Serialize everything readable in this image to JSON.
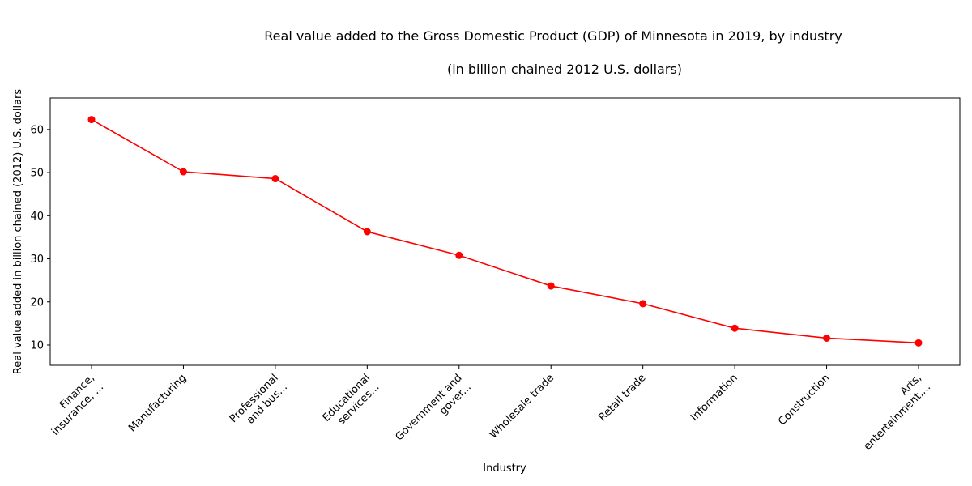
{
  "chart_data": {
    "type": "line",
    "title": "Real value added to the Gross Domestic Product (GDP) of Minnesota in 2019, by industry",
    "subtitle": "(in billion chained 2012 U.S. dollars)",
    "xlabel": "Industry",
    "ylabel": "Real value added in billion chained (2012) U.S. dollars",
    "categories": [
      [
        "Finance,",
        "insurance, ..."
      ],
      [
        "Manufacturing"
      ],
      [
        "Professional",
        "and bus..."
      ],
      [
        "Educational",
        "services..."
      ],
      [
        "Government and",
        "gover..."
      ],
      [
        "Wholesale trade"
      ],
      [
        "Retail trade"
      ],
      [
        "Information"
      ],
      [
        "Construction"
      ],
      [
        "Arts,",
        "entertainment,..."
      ]
    ],
    "values": [
      62.3,
      50.2,
      48.6,
      36.3,
      30.8,
      23.7,
      19.6,
      13.9,
      11.6,
      10.5
    ],
    "ylim": [
      5.3,
      67.3
    ],
    "yticks": [
      10,
      20,
      30,
      40,
      50,
      60
    ],
    "line_color": "#ff0000",
    "marker_color": "#ff0000",
    "grid": false
  }
}
